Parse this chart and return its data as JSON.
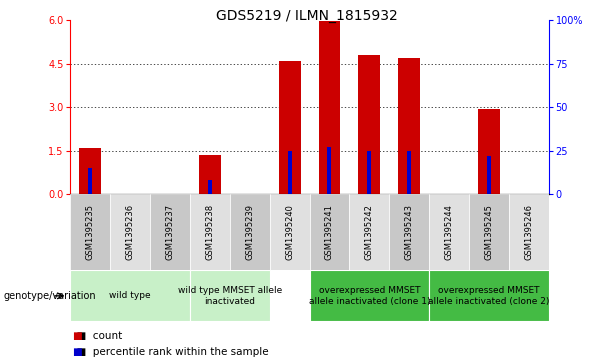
{
  "title": "GDS5219 / ILMN_1815932",
  "samples": [
    "GSM1395235",
    "GSM1395236",
    "GSM1395237",
    "GSM1395238",
    "GSM1395239",
    "GSM1395240",
    "GSM1395241",
    "GSM1395242",
    "GSM1395243",
    "GSM1395244",
    "GSM1395245",
    "GSM1395246"
  ],
  "counts": [
    1.6,
    0.0,
    0.0,
    1.35,
    0.0,
    4.6,
    5.95,
    4.8,
    4.7,
    0.0,
    2.95,
    0.0
  ],
  "percentiles_pct": [
    15.0,
    0.0,
    0.0,
    8.0,
    0.0,
    25.0,
    27.0,
    25.0,
    25.0,
    0.0,
    22.0,
    0.0
  ],
  "has_percentile": [
    true,
    false,
    false,
    true,
    false,
    true,
    true,
    true,
    true,
    false,
    true,
    false
  ],
  "ylim_left": [
    0,
    6
  ],
  "ylim_right": [
    0,
    100
  ],
  "yticks_left": [
    0,
    1.5,
    3.0,
    4.5,
    6.0
  ],
  "yticks_right": [
    0,
    25,
    50,
    75,
    100
  ],
  "bar_color": "#cc0000",
  "percentile_color": "#0000cc",
  "genotype_groups": [
    {
      "label": "wild type",
      "start": 0,
      "end": 3,
      "color": "#c8f0c8",
      "text_lines": [
        "wild type"
      ]
    },
    {
      "label": "wild type MMSET allele\ninactivated",
      "start": 3,
      "end": 5,
      "color": "#c8f0c8",
      "text_lines": [
        "wild type MMSET allele",
        "inactivated"
      ]
    },
    {
      "label": "overexpressed MMSET\nallele inactivated (clone 1)",
      "start": 6,
      "end": 9,
      "color": "#44bb44",
      "text_lines": [
        "overexpressed MMSET",
        "allele inactivated (clone 1)"
      ]
    },
    {
      "label": "overexpressed MMSET\nallele inactivated (clone 2)",
      "start": 9,
      "end": 12,
      "color": "#44bb44",
      "text_lines": [
        "overexpressed MMSET",
        "allele inactivated (clone 2)"
      ]
    }
  ],
  "legend_count_label": "count",
  "legend_percentile_label": "percentile rank within the sample",
  "genotype_label": "genotype/variation",
  "sample_bg_odd": "#c8c8c8",
  "sample_bg_even": "#e0e0e0",
  "title_fontsize": 10,
  "tick_fontsize": 7,
  "sample_fontsize": 6,
  "geno_fontsize": 6.5
}
